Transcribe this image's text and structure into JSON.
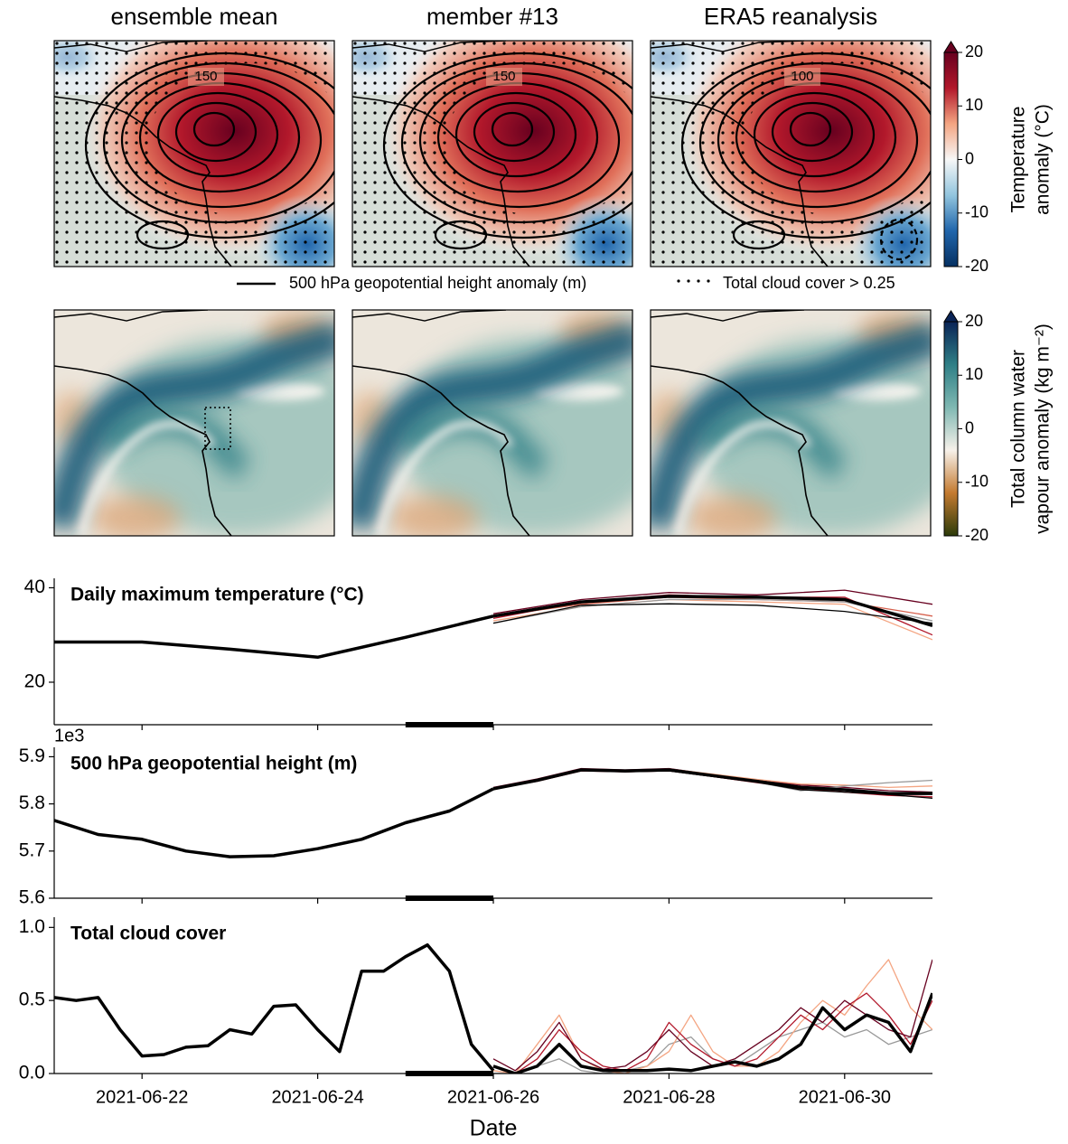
{
  "maps": {
    "panels": [
      {
        "title": "ensemble mean",
        "contour_label": "150"
      },
      {
        "title": "member #13",
        "contour_label": "150"
      },
      {
        "title": "ERA5 reanalysis",
        "contour_label": "100"
      }
    ],
    "colorbars": [
      {
        "label": [
          "Temperature",
          "anomaly (°C)"
        ],
        "lim": [
          -20,
          20
        ],
        "ticks": [
          20,
          10,
          0,
          -10,
          -20
        ],
        "colors": [
          "#053061",
          "#2166ac",
          "#92c5de",
          "#f7f7f7",
          "#f4a582",
          "#b2182b",
          "#67001f"
        ]
      },
      {
        "label": [
          "Total column water",
          "vapour anomaly (kg m⁻²)"
        ],
        "lim": [
          -20,
          20
        ],
        "ticks": [
          20,
          10,
          0,
          -10,
          -20
        ],
        "colors": [
          "#2c3b0a",
          "#c47a30",
          "#f7f1ea",
          "#7fb8b2",
          "#2f7f86",
          "#0a2456"
        ]
      }
    ],
    "legend": {
      "contour": "500 hPa geopotential height anomaly (m)",
      "stipple": "Total cloud cover > 0.25"
    }
  },
  "chart_data": [
    {
      "type": "line",
      "title": "Daily maximum temperature (°C)",
      "ylim": [
        11,
        42
      ],
      "yticks": [
        20,
        40
      ],
      "highlight": [
        "2021-06-25",
        "2021-06-26"
      ],
      "x": [
        "2021-06-21",
        "2021-06-22",
        "2021-06-23",
        "2021-06-24",
        "2021-06-25",
        "2021-06-26",
        "2021-06-27",
        "2021-06-28",
        "2021-06-29",
        "2021-06-30",
        "2021-07-01"
      ],
      "series": [
        {
          "color": "#67001f",
          "width": 1.3,
          "values": [
            null,
            null,
            null,
            null,
            null,
            34.5,
            37.5,
            39,
            38.5,
            39.5,
            36.5
          ]
        },
        {
          "color": "#b2182b",
          "width": 1.3,
          "values": [
            null,
            null,
            null,
            null,
            null,
            33.5,
            37,
            38.5,
            38,
            38,
            30
          ]
        },
        {
          "color": "#d6604d",
          "width": 1.3,
          "values": [
            null,
            null,
            null,
            null,
            null,
            34,
            36.5,
            38,
            37.5,
            37,
            34
          ]
        },
        {
          "color": "#f4a582",
          "width": 1.3,
          "values": [
            null,
            null,
            null,
            null,
            null,
            33,
            36,
            37.5,
            37,
            36.5,
            29
          ]
        },
        {
          "color": "#999999",
          "width": 1.3,
          "values": [
            null,
            null,
            null,
            null,
            null,
            32.5,
            36,
            37.5,
            37.5,
            37,
            33
          ]
        },
        {
          "color": "#000000",
          "width": 1.3,
          "values": [
            null,
            null,
            null,
            null,
            null,
            32.5,
            36.3,
            36.6,
            36.3,
            35,
            32.5
          ]
        },
        {
          "color": "#000000",
          "width": 3.5,
          "values": [
            28.5,
            28.5,
            27,
            25.3,
            29.5,
            34,
            null,
            null,
            null,
            null,
            null
          ]
        },
        {
          "color": "#000000",
          "width": 3.5,
          "values": [
            null,
            null,
            null,
            null,
            null,
            34,
            37,
            38.2,
            38,
            37.5,
            32
          ]
        }
      ]
    },
    {
      "type": "line",
      "title": "500 hPa geopotential height (m)",
      "offset_label": "1e3",
      "ylim": [
        5.6,
        5.92
      ],
      "yticks": [
        5.6,
        5.7,
        5.8,
        5.9
      ],
      "highlight": [
        "2021-06-25",
        "2021-06-26"
      ],
      "x": [
        "2021-06-21 00:00",
        "2021-06-21 12:00",
        "2021-06-22 00:00",
        "2021-06-22 12:00",
        "2021-06-23 00:00",
        "2021-06-23 12:00",
        "2021-06-24 00:00",
        "2021-06-24 12:00",
        "2021-06-25 00:00",
        "2021-06-25 12:00",
        "2021-06-26 00:00",
        "2021-06-26 12:00",
        "2021-06-27 00:00",
        "2021-06-27 12:00",
        "2021-06-28 00:00",
        "2021-06-28 12:00",
        "2021-06-29 00:00",
        "2021-06-29 12:00",
        "2021-06-30 00:00",
        "2021-06-30 12:00",
        "2021-07-01 00:00"
      ],
      "series": [
        {
          "color": "#67001f",
          "width": 1.3,
          "values": [
            null,
            null,
            null,
            null,
            null,
            null,
            null,
            null,
            null,
            null,
            5.835,
            5.853,
            5.875,
            5.872,
            5.875,
            5.862,
            5.85,
            5.84,
            5.835,
            5.828,
            5.825
          ]
        },
        {
          "color": "#b2182b",
          "width": 1.3,
          "values": [
            null,
            null,
            null,
            null,
            null,
            null,
            null,
            null,
            null,
            null,
            5.832,
            5.848,
            5.87,
            5.868,
            5.87,
            5.858,
            5.845,
            5.832,
            5.825,
            5.818,
            5.815
          ]
        },
        {
          "color": "#f4a582",
          "width": 1.3,
          "values": [
            null,
            null,
            null,
            null,
            null,
            null,
            null,
            null,
            null,
            null,
            5.83,
            5.85,
            5.873,
            5.871,
            5.874,
            5.863,
            5.852,
            5.842,
            5.84,
            5.835,
            5.838
          ]
        },
        {
          "color": "#999999",
          "width": 1.3,
          "values": [
            null,
            null,
            null,
            null,
            null,
            null,
            null,
            null,
            null,
            null,
            5.832,
            5.851,
            5.872,
            5.869,
            5.871,
            5.859,
            5.846,
            5.828,
            5.838,
            5.845,
            5.85
          ]
        },
        {
          "color": "#000000",
          "width": 1.3,
          "values": [
            null,
            null,
            null,
            null,
            null,
            null,
            null,
            null,
            null,
            null,
            5.832,
            5.85,
            5.871,
            5.868,
            5.87,
            5.858,
            5.846,
            5.83,
            5.825,
            5.82,
            5.812
          ]
        },
        {
          "color": "#000000",
          "width": 3.5,
          "values": [
            5.765,
            5.735,
            5.725,
            5.7,
            5.688,
            5.69,
            5.705,
            5.725,
            5.76,
            5.785,
            5.832,
            null,
            null,
            null,
            null,
            null,
            null,
            null,
            null,
            null,
            null
          ]
        },
        {
          "color": "#000000",
          "width": 3.5,
          "values": [
            null,
            null,
            null,
            null,
            null,
            null,
            null,
            null,
            null,
            null,
            5.832,
            5.85,
            5.872,
            5.87,
            5.872,
            5.86,
            5.848,
            5.835,
            5.83,
            5.822,
            5.822
          ]
        }
      ]
    },
    {
      "type": "line",
      "title": "Total cloud cover",
      "xlabel": "Date",
      "xlim": [
        "2021-06-21",
        "2021-07-01"
      ],
      "xticks": [
        "2021-06-22",
        "2021-06-24",
        "2021-06-26",
        "2021-06-28",
        "2021-06-30"
      ],
      "ylim": [
        0,
        1.07
      ],
      "yticks": [
        {
          "value": 0,
          "label": "0.0"
        },
        {
          "value": 0.5,
          "label": "0.5"
        },
        {
          "value": 1,
          "label": "1.0"
        }
      ],
      "highlight": [
        "2021-06-25",
        "2021-06-26"
      ],
      "x": [
        "2021-06-21 00:00",
        "2021-06-21 06:00",
        "2021-06-21 12:00",
        "2021-06-21 18:00",
        "2021-06-22 00:00",
        "2021-06-22 06:00",
        "2021-06-22 12:00",
        "2021-06-22 18:00",
        "2021-06-23 00:00",
        "2021-06-23 06:00",
        "2021-06-23 12:00",
        "2021-06-23 18:00",
        "2021-06-24 00:00",
        "2021-06-24 06:00",
        "2021-06-24 12:00",
        "2021-06-24 18:00",
        "2021-06-25 00:00",
        "2021-06-25 06:00",
        "2021-06-25 12:00",
        "2021-06-25 18:00",
        "2021-06-26 00:00",
        "2021-06-26 06:00",
        "2021-06-26 12:00",
        "2021-06-26 18:00",
        "2021-06-27 00:00",
        "2021-06-27 06:00",
        "2021-06-27 12:00",
        "2021-06-27 18:00",
        "2021-06-28 00:00",
        "2021-06-28 06:00",
        "2021-06-28 12:00",
        "2021-06-28 18:00",
        "2021-06-29 00:00",
        "2021-06-29 06:00",
        "2021-06-29 12:00",
        "2021-06-29 18:00",
        "2021-06-30 00:00",
        "2021-06-30 06:00",
        "2021-06-30 12:00",
        "2021-06-30 18:00",
        "2021-07-01 00:00"
      ],
      "series": [
        {
          "color": "#999999",
          "width": 1.3,
          "values": [
            null,
            null,
            null,
            null,
            null,
            null,
            null,
            null,
            null,
            null,
            null,
            null,
            null,
            null,
            null,
            null,
            null,
            null,
            null,
            null,
            0,
            0,
            0.05,
            0.1,
            0.02,
            0,
            0.02,
            0.05,
            0.2,
            0.25,
            0.1,
            0.05,
            0.15,
            0.25,
            0.3,
            0.35,
            0.25,
            0.3,
            0.2,
            0.25,
            0.3
          ]
        },
        {
          "color": "#f4a582",
          "width": 1.3,
          "values": [
            null,
            null,
            null,
            null,
            null,
            null,
            null,
            null,
            null,
            null,
            null,
            null,
            null,
            null,
            null,
            null,
            null,
            null,
            null,
            null,
            0.02,
            0,
            0.2,
            0.4,
            0.1,
            0.02,
            0,
            0.05,
            0.15,
            0.4,
            0.15,
            0.05,
            0.05,
            0.15,
            0.35,
            0.5,
            0.4,
            0.6,
            0.78,
            0.45,
            0.3
          ]
        },
        {
          "color": "#b2182b",
          "width": 1.3,
          "values": [
            null,
            null,
            null,
            null,
            null,
            null,
            null,
            null,
            null,
            null,
            null,
            null,
            null,
            null,
            null,
            null,
            null,
            null,
            null,
            null,
            0.05,
            0,
            0.1,
            0.3,
            0.15,
            0.05,
            0.02,
            0.1,
            0.35,
            0.2,
            0.1,
            0.05,
            0.1,
            0.25,
            0.4,
            0.3,
            0.45,
            0.55,
            0.4,
            0.2,
            0.5
          ]
        },
        {
          "color": "#67001f",
          "width": 1.3,
          "values": [
            null,
            null,
            null,
            null,
            null,
            null,
            null,
            null,
            null,
            null,
            null,
            null,
            null,
            null,
            null,
            null,
            null,
            null,
            null,
            null,
            0.1,
            0.02,
            0.15,
            0.35,
            0.1,
            0.03,
            0.05,
            0.15,
            0.3,
            0.15,
            0.05,
            0.1,
            0.2,
            0.3,
            0.45,
            0.35,
            0.5,
            0.4,
            0.3,
            0.25,
            0.78
          ]
        },
        {
          "color": "#000000",
          "width": 3.5,
          "values": [
            0.52,
            0.5,
            0.52,
            0.3,
            0.12,
            0.13,
            0.18,
            0.19,
            0.3,
            0.27,
            0.46,
            0.47,
            0.3,
            0.15,
            0.7,
            0.7,
            0.8,
            0.88,
            0.7,
            0.2,
            0.02,
            null,
            null,
            null,
            null,
            null,
            null,
            null,
            null,
            null,
            null,
            null,
            null,
            null,
            null,
            null,
            null,
            null,
            null,
            null,
            null
          ]
        },
        {
          "color": "#000000",
          "width": 3.5,
          "values": [
            null,
            null,
            null,
            null,
            null,
            null,
            null,
            null,
            null,
            null,
            null,
            null,
            null,
            null,
            null,
            null,
            null,
            null,
            null,
            null,
            0.05,
            0,
            0.05,
            0.2,
            0.05,
            0.02,
            0.02,
            0.02,
            0.03,
            0.02,
            0.05,
            0.08,
            0.05,
            0.1,
            0.2,
            0.45,
            0.3,
            0.4,
            0.35,
            0.15,
            0.55
          ]
        }
      ]
    }
  ]
}
